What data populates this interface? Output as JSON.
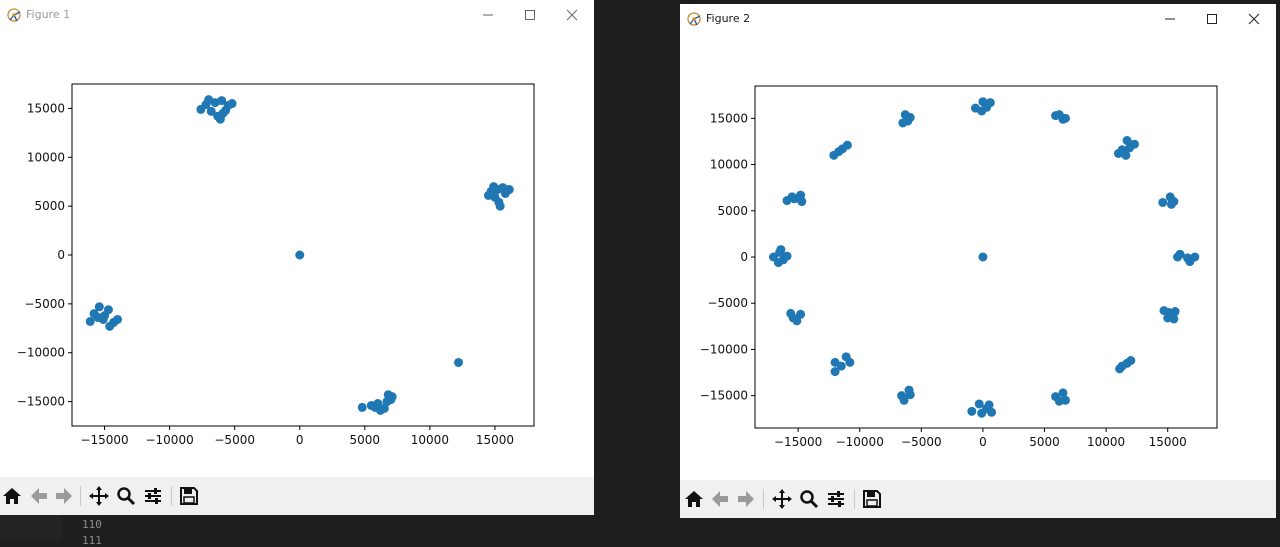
{
  "figure1": {
    "title": "Figure 1",
    "chart_data": {
      "type": "scatter",
      "xlim": [
        -17500,
        18000
      ],
      "ylim": [
        -17500,
        17500
      ],
      "x_ticks": [
        -15000,
        -10000,
        -5000,
        0,
        5000,
        10000,
        15000
      ],
      "x_tick_labels": [
        "−15000",
        "−10000",
        "−5000",
        "0",
        "5000",
        "10000",
        "15000"
      ],
      "y_ticks": [
        15000,
        10000,
        5000,
        0,
        -5000,
        -10000,
        -15000
      ],
      "y_tick_labels": [
        "15000",
        "10000",
        "5000",
        "0",
        "−5000",
        "−10000",
        "−15000"
      ],
      "color": "#1f77b4",
      "points": [
        {
          "x": -6500,
          "y": 15600
        },
        {
          "x": -7200,
          "y": 15400
        },
        {
          "x": -6000,
          "y": 15800
        },
        {
          "x": -5500,
          "y": 15300
        },
        {
          "x": -7600,
          "y": 14900
        },
        {
          "x": -6800,
          "y": 14700
        },
        {
          "x": -5900,
          "y": 14500
        },
        {
          "x": -6300,
          "y": 14200
        },
        {
          "x": -5200,
          "y": 15500
        },
        {
          "x": -7000,
          "y": 15900
        },
        {
          "x": -6100,
          "y": 13900
        },
        {
          "x": -5700,
          "y": 14800
        },
        {
          "x": 15200,
          "y": 6700
        },
        {
          "x": 14700,
          "y": 6500
        },
        {
          "x": 15600,
          "y": 6900
        },
        {
          "x": 16100,
          "y": 6700
        },
        {
          "x": 14500,
          "y": 6100
        },
        {
          "x": 15000,
          "y": 5900
        },
        {
          "x": 15300,
          "y": 5400
        },
        {
          "x": 15400,
          "y": 5000
        },
        {
          "x": 14900,
          "y": 7000
        },
        {
          "x": 15800,
          "y": 6300
        },
        {
          "x": -15400,
          "y": -5300
        },
        {
          "x": -15800,
          "y": -6000
        },
        {
          "x": -14700,
          "y": -5600
        },
        {
          "x": -15100,
          "y": -6600
        },
        {
          "x": -16100,
          "y": -6800
        },
        {
          "x": -14300,
          "y": -6900
        },
        {
          "x": -14000,
          "y": -6600
        },
        {
          "x": -15000,
          "y": -6200
        },
        {
          "x": -14600,
          "y": -7300
        },
        {
          "x": -15500,
          "y": -6400
        },
        {
          "x": 0,
          "y": 0
        },
        {
          "x": 12200,
          "y": -11000
        },
        {
          "x": 4800,
          "y": -15600
        },
        {
          "x": 5500,
          "y": -15400
        },
        {
          "x": 6000,
          "y": -15200
        },
        {
          "x": 6500,
          "y": -15700
        },
        {
          "x": 6800,
          "y": -14300
        },
        {
          "x": 7000,
          "y": -14800
        },
        {
          "x": 6200,
          "y": -15900
        },
        {
          "x": 5800,
          "y": -15600
        },
        {
          "x": 6700,
          "y": -15000
        },
        {
          "x": 7100,
          "y": -14500
        }
      ]
    }
  },
  "figure2": {
    "title": "Figure 2",
    "chart_data": {
      "type": "scatter",
      "xlim": [
        -18500,
        19000
      ],
      "ylim": [
        -18500,
        18500
      ],
      "x_ticks": [
        -15000,
        -10000,
        -5000,
        0,
        5000,
        10000,
        15000
      ],
      "x_tick_labels": [
        "−15000",
        "−10000",
        "−5000",
        "0",
        "5000",
        "10000",
        "15000"
      ],
      "y_ticks": [
        15000,
        10000,
        5000,
        0,
        -5000,
        -10000,
        -15000
      ],
      "y_tick_labels": [
        "15000",
        "10000",
        "5000",
        "0",
        "−5000",
        "−10000",
        "−15000"
      ],
      "color": "#1f77b4",
      "points": [
        {
          "x": 0,
          "y": 16800
        },
        {
          "x": -600,
          "y": 16100
        },
        {
          "x": 300,
          "y": 16200
        },
        {
          "x": 600,
          "y": 16700
        },
        {
          "x": -100,
          "y": 15800
        },
        {
          "x": 6200,
          "y": 15400
        },
        {
          "x": 6700,
          "y": 15000
        },
        {
          "x": 5900,
          "y": 15300
        },
        {
          "x": 6500,
          "y": 14900
        },
        {
          "x": -6300,
          "y": 15400
        },
        {
          "x": -6500,
          "y": 14500
        },
        {
          "x": -5900,
          "y": 15100
        },
        {
          "x": -6100,
          "y": 14700
        },
        {
          "x": 11700,
          "y": 12600
        },
        {
          "x": 11300,
          "y": 11600
        },
        {
          "x": 12300,
          "y": 12200
        },
        {
          "x": 11000,
          "y": 11200
        },
        {
          "x": 11600,
          "y": 11000
        },
        {
          "x": 11900,
          "y": 11800
        },
        {
          "x": -12100,
          "y": 11000
        },
        {
          "x": -11400,
          "y": 11700
        },
        {
          "x": -11000,
          "y": 12100
        },
        {
          "x": -11700,
          "y": 11400
        },
        {
          "x": -15500,
          "y": 6500
        },
        {
          "x": -15900,
          "y": 6100
        },
        {
          "x": -14800,
          "y": 6700
        },
        {
          "x": -14700,
          "y": 6000
        },
        {
          "x": -15300,
          "y": 6300
        },
        {
          "x": 15200,
          "y": 6500
        },
        {
          "x": 14600,
          "y": 5900
        },
        {
          "x": 15500,
          "y": 6000
        },
        {
          "x": 15300,
          "y": 5700
        },
        {
          "x": -16500,
          "y": 500
        },
        {
          "x": -17000,
          "y": 0
        },
        {
          "x": -16200,
          "y": -300
        },
        {
          "x": -15900,
          "y": 100
        },
        {
          "x": -16600,
          "y": -600
        },
        {
          "x": -16400,
          "y": 800
        },
        {
          "x": 16000,
          "y": 300
        },
        {
          "x": 16600,
          "y": -100
        },
        {
          "x": 17200,
          "y": 0
        },
        {
          "x": 16800,
          "y": -500
        },
        {
          "x": 15800,
          "y": 0
        },
        {
          "x": 0,
          "y": 0
        },
        {
          "x": -15600,
          "y": -6100
        },
        {
          "x": -14800,
          "y": -6200
        },
        {
          "x": -15100,
          "y": -6900
        },
        {
          "x": -15400,
          "y": -6600
        },
        {
          "x": 15100,
          "y": -6000
        },
        {
          "x": 14700,
          "y": -5800
        },
        {
          "x": 15500,
          "y": -6700
        },
        {
          "x": 15000,
          "y": -6600
        },
        {
          "x": 15600,
          "y": -5900
        },
        {
          "x": -12000,
          "y": -11400
        },
        {
          "x": -11100,
          "y": -10800
        },
        {
          "x": -10800,
          "y": -11400
        },
        {
          "x": -12000,
          "y": -12400
        },
        {
          "x": -11500,
          "y": -11800
        },
        {
          "x": 11300,
          "y": -11800
        },
        {
          "x": 11700,
          "y": -11500
        },
        {
          "x": 12000,
          "y": -11200
        },
        {
          "x": 11100,
          "y": -12100
        },
        {
          "x": -6600,
          "y": -15000
        },
        {
          "x": -6000,
          "y": -14400
        },
        {
          "x": -6400,
          "y": -15500
        },
        {
          "x": -5900,
          "y": -14900
        },
        {
          "x": 5900,
          "y": -15100
        },
        {
          "x": 6500,
          "y": -14700
        },
        {
          "x": 6200,
          "y": -15600
        },
        {
          "x": 6700,
          "y": -15500
        },
        {
          "x": -900,
          "y": -16700
        },
        {
          "x": -300,
          "y": -15900
        },
        {
          "x": 300,
          "y": -16400
        },
        {
          "x": 700,
          "y": -16800
        },
        {
          "x": -100,
          "y": -16900
        },
        {
          "x": 500,
          "y": -16000
        }
      ]
    }
  },
  "editor": {
    "lines": [
      "110",
      "111"
    ]
  },
  "icons": {
    "home": "home-icon",
    "back": "arrow-left-icon",
    "forward": "arrow-right-icon",
    "pan": "move-icon",
    "zoom": "zoom-icon",
    "configure": "sliders-icon",
    "save": "save-icon"
  }
}
